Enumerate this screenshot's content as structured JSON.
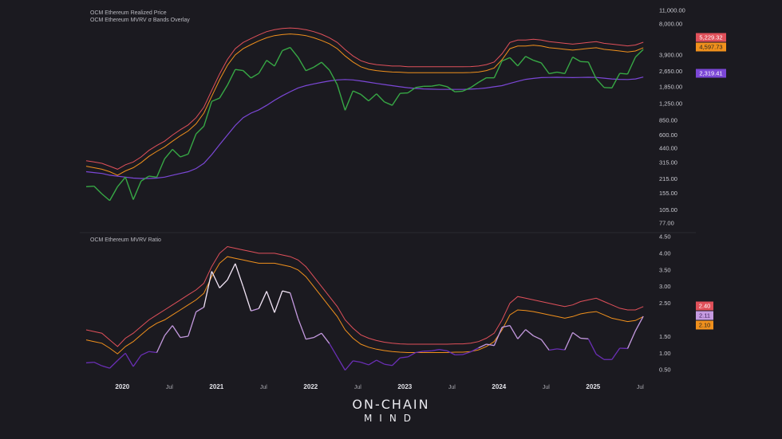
{
  "legends": {
    "top_1": "OCM Ethereum Realized Price",
    "top_2": "OCM Ethereum MVRV σ Bands Overlay",
    "bottom": "OCM Ethereum MVRV Ratio"
  },
  "logo": {
    "line1": "ON-CHAIN",
    "line2": "MIND"
  },
  "colors": {
    "background": "#1b1a20",
    "price": "#37a845",
    "realized": "#7b47d6",
    "upper_band": "#e0505a",
    "lower_band": "#f0901c",
    "mvrv_high": "#f3e6f7",
    "mvrv_mid": "#c59ae0",
    "mvrv_low": "#6a2fb5"
  },
  "chart_data": [
    {
      "type": "line",
      "scale": "log",
      "ylim": [
        70,
        12000
      ],
      "y_ticks": [
        "11,000.00",
        "8,000.00",
        "3,900.00",
        "2,650.00",
        "1,850.00",
        "1,250.00",
        "850.00",
        "600.00",
        "440.00",
        "315.00",
        "215.00",
        "155.00",
        "105.00",
        "77.00"
      ],
      "y_tick_values": [
        11000,
        8000,
        3900,
        2650,
        1850,
        1250,
        850,
        600,
        440,
        315,
        215,
        155,
        105,
        77
      ],
      "x_start": "2019-09",
      "x_ticks": [
        "2020",
        "Jul",
        "2021",
        "Jul",
        "2022",
        "Jul",
        "2023",
        "Jul",
        "2024",
        "Jul",
        "2025",
        "Jul"
      ],
      "x_tick_dates": [
        "2020-01",
        "2020-07",
        "2021-01",
        "2021-07",
        "2022-01",
        "2022-07",
        "2023-01",
        "2023-07",
        "2024-01",
        "2024-07",
        "2025-01",
        "2025-07"
      ],
      "last_value_labels": [
        {
          "series": "upper_band",
          "text": "5,229.32"
        },
        {
          "series": "lower_band",
          "text": "4,597.73"
        },
        {
          "series": "realized",
          "text": "2,319.41"
        }
      ],
      "series": {
        "price": [
          180,
          182,
          152,
          130,
          180,
          225,
          133,
          205,
          230,
          225,
          345,
          430,
          360,
          385,
          615,
          737,
          1315,
          1420,
          1920,
          2770,
          2700,
          2270,
          2530,
          3430,
          3000,
          4300,
          4630,
          3680,
          2690,
          2920,
          3280,
          2730,
          1940,
          1070,
          1680,
          1550,
          1330,
          1570,
          1300,
          1200,
          1585,
          1605,
          1820,
          1870,
          1875,
          1935,
          1855,
          1645,
          1670,
          1815,
          2050,
          2280,
          2280,
          3380,
          3650,
          3010,
          3760,
          3430,
          3230,
          2510,
          2600,
          2520,
          3700,
          3330,
          3300,
          2230,
          1820,
          1800,
          2530,
          2490,
          3700,
          4420
        ],
        "realized": [
          255,
          250,
          245,
          235,
          230,
          225,
          220,
          218,
          218,
          220,
          225,
          235,
          245,
          255,
          275,
          310,
          380,
          480,
          600,
          750,
          900,
          1000,
          1080,
          1200,
          1350,
          1500,
          1650,
          1800,
          1900,
          1980,
          2050,
          2120,
          2170,
          2190,
          2170,
          2120,
          2060,
          2000,
          1950,
          1900,
          1850,
          1810,
          1780,
          1760,
          1750,
          1740,
          1740,
          1740,
          1740,
          1750,
          1770,
          1800,
          1850,
          1900,
          2000,
          2100,
          2200,
          2250,
          2290,
          2300,
          2310,
          2300,
          2290,
          2300,
          2310,
          2300,
          2260,
          2220,
          2200,
          2190,
          2220,
          2319.41
        ],
        "upper_band": [
          330,
          320,
          310,
          290,
          270,
          300,
          320,
          360,
          420,
          470,
          520,
          600,
          680,
          760,
          900,
          1150,
          1700,
          2500,
          3500,
          4500,
          5200,
          5700,
          6200,
          6700,
          7000,
          7200,
          7300,
          7200,
          7000,
          6700,
          6300,
          5800,
          5200,
          4400,
          3800,
          3400,
          3200,
          3100,
          3050,
          3000,
          3000,
          2950,
          2950,
          2950,
          2950,
          2950,
          2950,
          2950,
          2950,
          2960,
          3000,
          3100,
          3300,
          4000,
          5200,
          5500,
          5500,
          5600,
          5500,
          5300,
          5200,
          5100,
          5000,
          5100,
          5200,
          5300,
          5100,
          5000,
          4900,
          4800,
          4900,
          5229.32
        ],
        "lower_band": [
          290,
          280,
          270,
          255,
          235,
          260,
          280,
          315,
          365,
          410,
          455,
          520,
          590,
          660,
          780,
          1000,
          1480,
          2180,
          3050,
          3900,
          4500,
          4950,
          5400,
          5800,
          6100,
          6250,
          6350,
          6250,
          6100,
          5800,
          5450,
          5050,
          4500,
          3800,
          3300,
          2950,
          2780,
          2700,
          2650,
          2610,
          2600,
          2570,
          2570,
          2570,
          2570,
          2570,
          2570,
          2570,
          2570,
          2580,
          2610,
          2700,
          2870,
          3480,
          4500,
          4780,
          4780,
          4870,
          4780,
          4600,
          4520,
          4430,
          4350,
          4430,
          4520,
          4600,
          4430,
          4350,
          4260,
          4170,
          4260,
          4597.73
        ]
      }
    },
    {
      "type": "line",
      "ylim": [
        0.3,
        4.6
      ],
      "y_ticks": [
        "4.50",
        "4.00",
        "3.50",
        "3.00",
        "2.50",
        "1.50",
        "1.00",
        "0.50"
      ],
      "y_tick_values": [
        4.5,
        4.0,
        3.5,
        3.0,
        2.5,
        1.5,
        1.0,
        0.5
      ],
      "last_value_labels": [
        {
          "series": "mvrv_upper",
          "text": "2.40"
        },
        {
          "series": "mvrv",
          "text": "2.11"
        },
        {
          "series": "mvrv_lower",
          "text": "2.10"
        }
      ],
      "series": {
        "mvrv": [
          0.71,
          0.73,
          0.62,
          0.55,
          0.78,
          1.0,
          0.6,
          0.94,
          1.05,
          1.02,
          1.53,
          1.83,
          1.47,
          1.51,
          2.24,
          2.38,
          3.46,
          2.96,
          3.2,
          3.69,
          3.0,
          2.27,
          2.34,
          2.86,
          2.22,
          2.87,
          2.81,
          2.04,
          1.42,
          1.47,
          1.6,
          1.29,
          0.89,
          0.49,
          0.77,
          0.73,
          0.65,
          0.79,
          0.67,
          0.63,
          0.86,
          0.89,
          1.02,
          1.06,
          1.07,
          1.11,
          1.07,
          0.95,
          0.96,
          1.04,
          1.16,
          1.27,
          1.23,
          1.78,
          1.83,
          1.43,
          1.71,
          1.52,
          1.41,
          1.09,
          1.13,
          1.1,
          1.62,
          1.45,
          1.43,
          0.97,
          0.81,
          0.81,
          1.15,
          1.14,
          1.67,
          2.11
        ],
        "mvrv_upper": [
          1.7,
          1.65,
          1.6,
          1.4,
          1.2,
          1.45,
          1.6,
          1.8,
          2.0,
          2.15,
          2.3,
          2.45,
          2.6,
          2.75,
          2.9,
          3.1,
          3.6,
          4.0,
          4.2,
          4.15,
          4.1,
          4.05,
          4.0,
          4.0,
          4.0,
          3.95,
          3.9,
          3.8,
          3.6,
          3.3,
          3.0,
          2.7,
          2.4,
          2.0,
          1.75,
          1.55,
          1.45,
          1.38,
          1.33,
          1.3,
          1.28,
          1.27,
          1.27,
          1.27,
          1.27,
          1.27,
          1.27,
          1.28,
          1.28,
          1.3,
          1.35,
          1.45,
          1.6,
          2.0,
          2.5,
          2.7,
          2.65,
          2.6,
          2.55,
          2.5,
          2.45,
          2.4,
          2.45,
          2.55,
          2.6,
          2.65,
          2.55,
          2.45,
          2.35,
          2.3,
          2.3,
          2.4
        ],
        "mvrv_lower": [
          1.4,
          1.35,
          1.3,
          1.15,
          0.98,
          1.2,
          1.35,
          1.55,
          1.75,
          1.9,
          2.0,
          2.15,
          2.3,
          2.45,
          2.6,
          2.8,
          3.3,
          3.7,
          3.9,
          3.85,
          3.8,
          3.75,
          3.7,
          3.7,
          3.7,
          3.65,
          3.6,
          3.5,
          3.3,
          3.0,
          2.7,
          2.4,
          2.1,
          1.7,
          1.45,
          1.27,
          1.18,
          1.12,
          1.08,
          1.05,
          1.03,
          1.02,
          1.02,
          1.02,
          1.02,
          1.02,
          1.02,
          1.03,
          1.03,
          1.05,
          1.1,
          1.2,
          1.35,
          1.7,
          2.15,
          2.3,
          2.28,
          2.25,
          2.2,
          2.15,
          2.1,
          2.05,
          2.1,
          2.18,
          2.22,
          2.25,
          2.15,
          2.05,
          2.0,
          1.95,
          1.98,
          2.1
        ]
      }
    }
  ]
}
